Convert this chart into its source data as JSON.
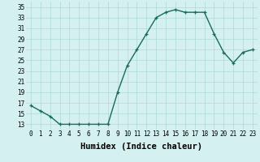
{
  "x": [
    0,
    1,
    2,
    3,
    4,
    5,
    6,
    7,
    8,
    9,
    10,
    11,
    12,
    13,
    14,
    15,
    16,
    17,
    18,
    19,
    20,
    21,
    22,
    23
  ],
  "y": [
    16.5,
    15.5,
    14.5,
    13,
    13,
    13,
    13,
    13,
    13,
    19,
    24,
    27,
    30,
    33,
    34,
    34.5,
    34,
    34,
    34,
    30,
    26.5,
    24.5,
    26.5,
    27
  ],
  "line_color": "#1a6b5a",
  "marker_color": "#1a6b5a",
  "bg_color": "#d4f0f0",
  "grid_color": "#aed8d8",
  "xlabel": "Humidex (Indice chaleur)",
  "xlim": [
    -0.5,
    23.5
  ],
  "ylim": [
    12,
    36
  ],
  "yticks": [
    13,
    15,
    17,
    19,
    21,
    23,
    25,
    27,
    29,
    31,
    33,
    35
  ],
  "xticks": [
    0,
    1,
    2,
    3,
    4,
    5,
    6,
    7,
    8,
    9,
    10,
    11,
    12,
    13,
    14,
    15,
    16,
    17,
    18,
    19,
    20,
    21,
    22,
    23
  ],
  "tick_label_fontsize": 5.5,
  "xlabel_fontsize": 7.5,
  "marker_size": 3.0,
  "line_width": 1.0
}
